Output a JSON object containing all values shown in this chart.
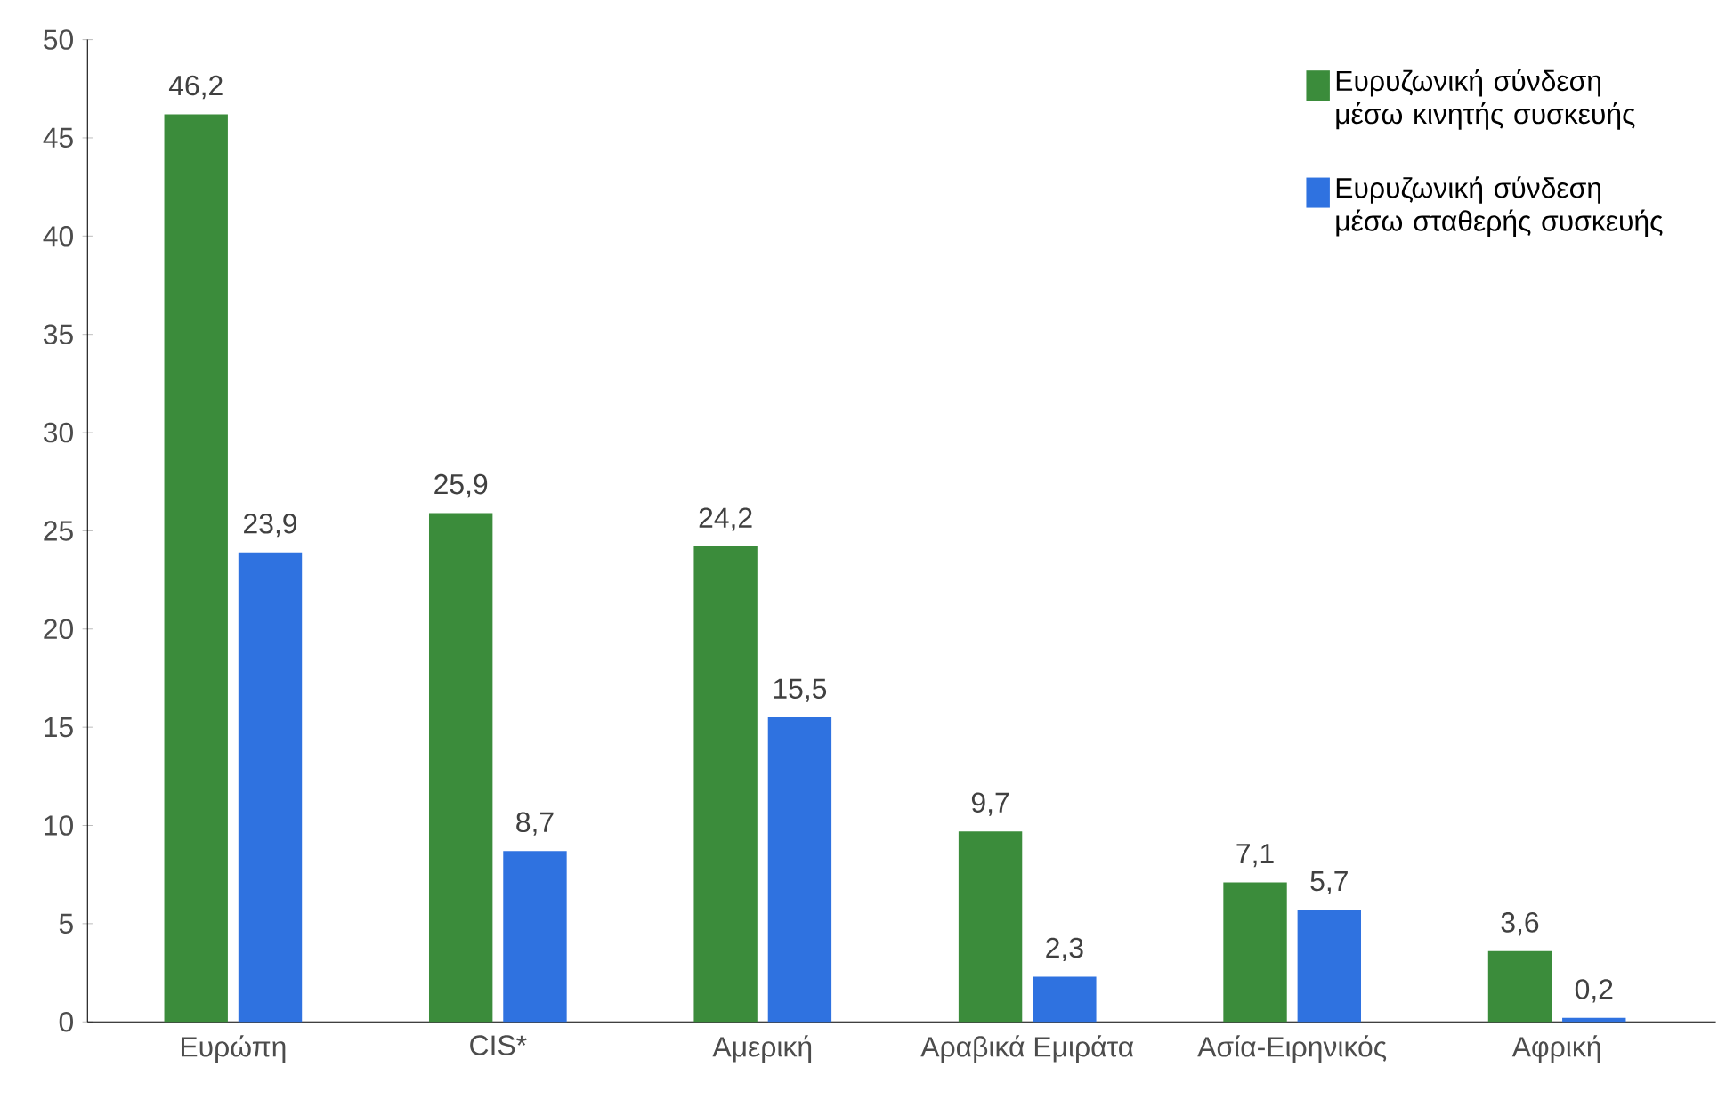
{
  "chart_data": {
    "type": "bar",
    "categories": [
      "Ευρώπη",
      "CIS*",
      "Αμερική",
      "Αραβικά Εμιράτα",
      "Ασία-Ειρηνικός",
      "Αφρική"
    ],
    "series": [
      {
        "name": "Ευρυζωνική σύνδεση μέσω κινητής συσκευής",
        "color": "#3b8c3b",
        "values": [
          46.2,
          25.9,
          24.2,
          9.7,
          7.1,
          3.6
        ],
        "value_labels": [
          "46,2",
          "25,9",
          "24,2",
          "9,7",
          "7,1",
          "3,6"
        ]
      },
      {
        "name": "Ευρυζωνική σύνδεση μέσω σταθερής συσκευής",
        "color": "#2f72e0",
        "values": [
          23.9,
          8.7,
          15.5,
          2.3,
          5.7,
          0.2
        ],
        "value_labels": [
          "23,9",
          "8,7",
          "15,5",
          "2,3",
          "5,7",
          "0,2"
        ]
      }
    ],
    "ylim": [
      0,
      50
    ],
    "yticks": [
      0,
      5,
      10,
      15,
      20,
      25,
      30,
      35,
      40,
      45,
      50
    ],
    "grid": false,
    "legend": "top right"
  }
}
